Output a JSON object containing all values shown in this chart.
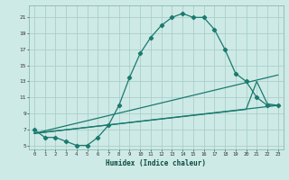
{
  "xlabel": "Humidex (Indice chaleur)",
  "bg_color": "#ceeae6",
  "grid_color": "#aacfcb",
  "line_color": "#1a7a6e",
  "xlim": [
    -0.5,
    23.5
  ],
  "ylim": [
    4.5,
    22.5
  ],
  "xticks": [
    0,
    1,
    2,
    3,
    4,
    5,
    6,
    7,
    8,
    9,
    10,
    11,
    12,
    13,
    14,
    15,
    16,
    17,
    18,
    19,
    20,
    21,
    22,
    23
  ],
  "yticks": [
    5,
    7,
    9,
    11,
    13,
    15,
    17,
    19,
    21
  ],
  "curve1_x": [
    0,
    1,
    2,
    3,
    4,
    5,
    6,
    7,
    8,
    9,
    10,
    11,
    12,
    13,
    14,
    15,
    16,
    17,
    18,
    19,
    20,
    21,
    22,
    23
  ],
  "curve1_y": [
    7,
    6,
    6,
    5.5,
    5,
    5,
    6,
    7.5,
    10,
    13.5,
    16.5,
    18.5,
    20,
    21,
    21.5,
    21,
    21,
    19.5,
    17,
    14,
    13,
    11,
    10,
    10
  ],
  "line2_x": [
    0,
    23
  ],
  "line2_y": [
    6.5,
    10
  ],
  "line3_x": [
    0,
    23
  ],
  "line3_y": [
    6.5,
    13.8
  ],
  "line4_x": [
    0,
    20,
    21,
    22,
    23
  ],
  "line4_y": [
    6.5,
    9.5,
    13,
    10.2,
    10
  ]
}
